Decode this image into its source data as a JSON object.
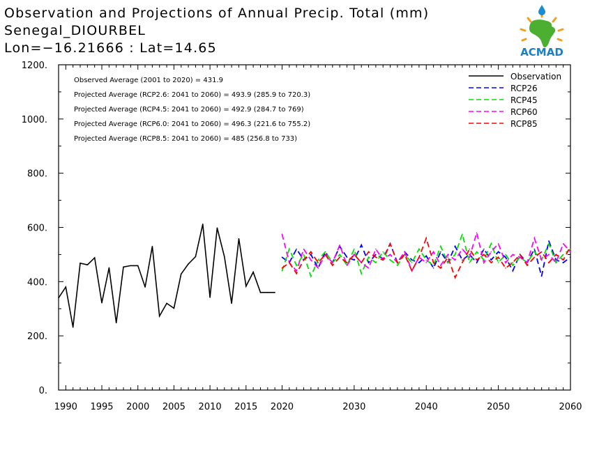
{
  "header": {
    "title_line1": "Observation and Projections of Annual Precip. Total (mm)",
    "title_line2": "Senegal_DIOURBEL",
    "title_line3": "Lon=−16.21666 : Lat=14.65"
  },
  "logo": {
    "text": "ACMAD",
    "icon": "africa-map-logo-icon",
    "colors": {
      "africa": "#4caf32",
      "drop": "#1a8ccf",
      "text": "#1a7fc4",
      "rays": "#f0a01e"
    }
  },
  "annotations": [
    "Observed Average (2001 to 2020) = 431.9",
    "Projected Average (RCP2.6: 2041 to 2060) = 493.9 (285.9 to 720.3)",
    "Projected Average (RCP4.5: 2041 to 2060) = 492.9 (284.7 to 769)",
    "Projected Average (RCP6.0: 2041 to 2060) = 496.3 (221.6 to 755.2)",
    "Projected Average (RCP8.5: 2041 to 2060) = 485 (256.8 to 733)"
  ],
  "chart_data": {
    "type": "line",
    "title": "Observation and Projections of Annual Precip. Total (mm)",
    "xlim": [
      1989,
      2060
    ],
    "ylim": [
      0,
      1200
    ],
    "xticks": [
      1990,
      1995,
      2000,
      2005,
      2010,
      2015,
      2020,
      2030,
      2040,
      2050,
      2060
    ],
    "yticks": [
      0,
      200,
      400,
      600,
      800,
      1000,
      1200
    ],
    "xtick_labels": [
      "1990",
      "1995",
      "2000",
      "2005",
      "2010",
      "2015",
      "2020",
      "2030",
      "2040",
      "2050",
      "2060"
    ],
    "ytick_labels": [
      "0.",
      "200.",
      "400.",
      "600.",
      "800.",
      "1000.",
      "1200."
    ],
    "legend_position": "top-right",
    "colors": {
      "Observation": "#000000",
      "RCP26": "#0000ff",
      "RCP45": "#00e000",
      "RCP60": "#ff00ff",
      "RCP85": "#ff0000"
    },
    "series": [
      {
        "name": "Observation",
        "style": "solid",
        "x": [
          1989,
          1990,
          1991,
          1992,
          1993,
          1994,
          1995,
          1996,
          1997,
          1998,
          1999,
          2000,
          2001,
          2002,
          2003,
          2004,
          2005,
          2006,
          2007,
          2008,
          2009,
          2010,
          2011,
          2012,
          2013,
          2014,
          2015,
          2016,
          2017,
          2018,
          2019
        ],
        "values": [
          340,
          380,
          232,
          468,
          462,
          488,
          322,
          451,
          248,
          454,
          459,
          459,
          380,
          530,
          273,
          320,
          302,
          428,
          465,
          492,
          612,
          342,
          598,
          492,
          320,
          558,
          383,
          435,
          360,
          360,
          360
        ]
      },
      {
        "name": "RCP26",
        "style": "dashed",
        "x": [
          2020,
          2021,
          2022,
          2023,
          2024,
          2025,
          2026,
          2027,
          2028,
          2029,
          2030,
          2031,
          2032,
          2033,
          2034,
          2035,
          2036,
          2037,
          2038,
          2039,
          2040,
          2041,
          2042,
          2043,
          2044,
          2045,
          2046,
          2047,
          2048,
          2049,
          2050,
          2051,
          2052,
          2053,
          2054,
          2055,
          2056,
          2057,
          2058,
          2059,
          2060
        ],
        "values": [
          490,
          470,
          520,
          480,
          500,
          450,
          510,
          470,
          530,
          490,
          480,
          535,
          470,
          500,
          485,
          540,
          470,
          510,
          480,
          470,
          495,
          450,
          510,
          470,
          530,
          480,
          500,
          470,
          520,
          480,
          510,
          490,
          440,
          500,
          470,
          520,
          420,
          550,
          480,
          470,
          490
        ]
      },
      {
        "name": "RCP45",
        "style": "dashed",
        "x": [
          2020,
          2021,
          2022,
          2023,
          2024,
          2025,
          2026,
          2027,
          2028,
          2029,
          2030,
          2031,
          2032,
          2033,
          2034,
          2035,
          2036,
          2037,
          2038,
          2039,
          2040,
          2041,
          2042,
          2043,
          2044,
          2045,
          2046,
          2047,
          2048,
          2049,
          2050,
          2051,
          2052,
          2053,
          2054,
          2055,
          2056,
          2057,
          2058,
          2059,
          2060
        ],
        "values": [
          440,
          520,
          460,
          500,
          420,
          480,
          510,
          470,
          500,
          460,
          520,
          430,
          490,
          470,
          510,
          480,
          460,
          500,
          470,
          520,
          480,
          460,
          530,
          470,
          500,
          575,
          470,
          510,
          480,
          540,
          470,
          500,
          460,
          490,
          470,
          510,
          480,
          540,
          470,
          500,
          520
        ]
      },
      {
        "name": "RCP60",
        "style": "dashed",
        "x": [
          2020,
          2021,
          2022,
          2023,
          2024,
          2025,
          2026,
          2027,
          2028,
          2029,
          2030,
          2031,
          2032,
          2033,
          2034,
          2035,
          2036,
          2037,
          2038,
          2039,
          2040,
          2041,
          2042,
          2043,
          2044,
          2045,
          2046,
          2047,
          2048,
          2049,
          2050,
          2051,
          2052,
          2053,
          2054,
          2055,
          2056,
          2057,
          2058,
          2059,
          2060
        ],
        "values": [
          575,
          470,
          440,
          520,
          480,
          450,
          500,
          470,
          535,
          460,
          500,
          470,
          450,
          520,
          480,
          500,
          470,
          510,
          440,
          490,
          470,
          510,
          460,
          500,
          480,
          520,
          490,
          580,
          470,
          510,
          540,
          470,
          500,
          490,
          470,
          560,
          480,
          500,
          470,
          540,
          510
        ]
      },
      {
        "name": "RCP85",
        "style": "dashed",
        "x": [
          2020,
          2021,
          2022,
          2023,
          2024,
          2025,
          2026,
          2027,
          2028,
          2029,
          2030,
          2031,
          2032,
          2033,
          2034,
          2035,
          2036,
          2037,
          2038,
          2039,
          2040,
          2041,
          2042,
          2043,
          2044,
          2045,
          2046,
          2047,
          2048,
          2049,
          2050,
          2051,
          2052,
          2053,
          2054,
          2055,
          2056,
          2057,
          2058,
          2059,
          2060
        ],
        "values": [
          450,
          470,
          430,
          480,
          510,
          470,
          500,
          460,
          490,
          470,
          500,
          470,
          510,
          490,
          480,
          540,
          470,
          500,
          440,
          490,
          560,
          470,
          450,
          490,
          415,
          470,
          520,
          480,
          500,
          470,
          490,
          450,
          470,
          500,
          460,
          490,
          510,
          470,
          500,
          480,
          530
        ]
      }
    ]
  }
}
